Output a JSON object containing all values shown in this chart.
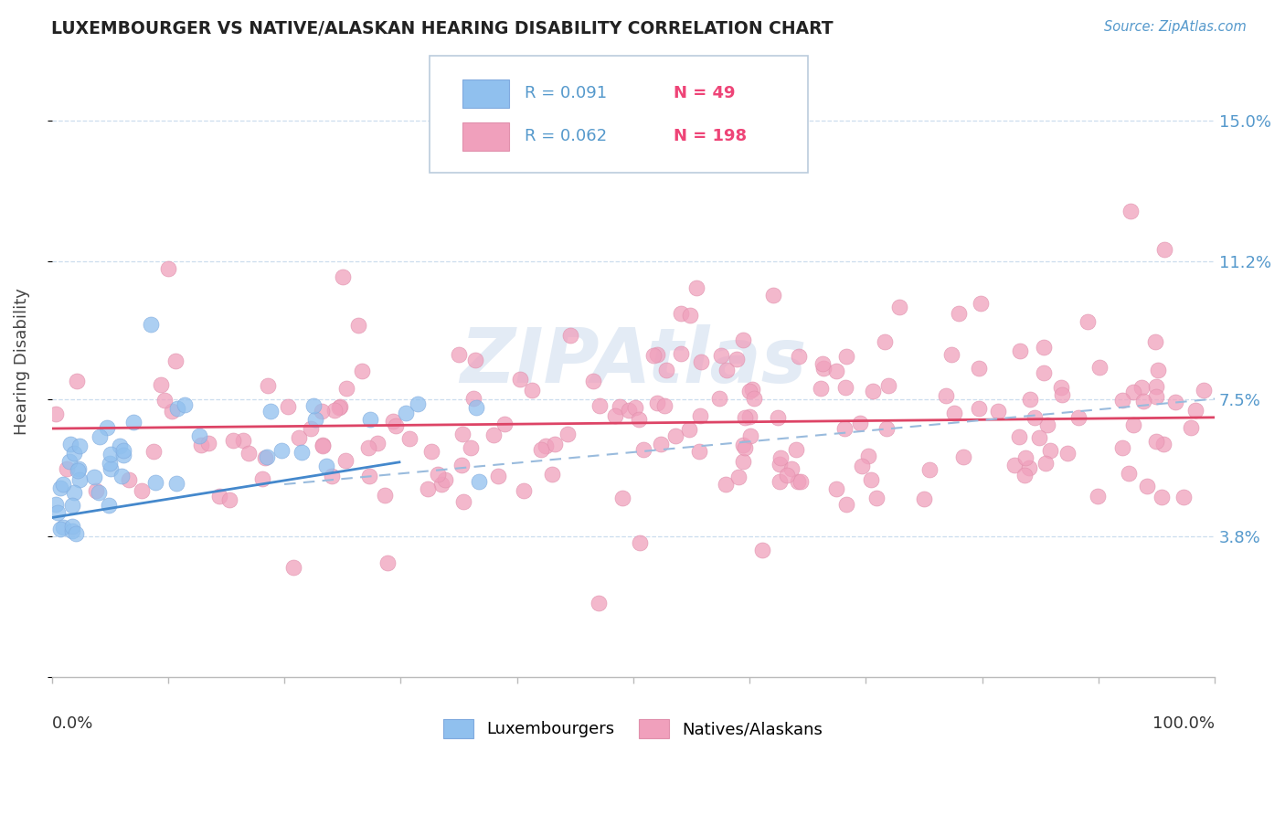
{
  "title": "LUXEMBOURGER VS NATIVE/ALASKAN HEARING DISABILITY CORRELATION CHART",
  "source_text": "Source: ZipAtlas.com",
  "ylabel": "Hearing Disability",
  "color_lux": "#90C0EE",
  "color_lux_edge": "#80AADE",
  "color_native": "#F0A0BC",
  "color_native_edge": "#E090AC",
  "color_trendline_lux": "#4488CC",
  "color_trendline_native": "#DD4466",
  "color_dashed": "#99BBDD",
  "background_color": "#FFFFFF",
  "grid_color": "#CCDDEE",
  "watermark": "ZIPAtlas",
  "ytick_vals": [
    0,
    3.8,
    7.5,
    11.2,
    15.0
  ],
  "ytick_labels": [
    "",
    "3.8%",
    "7.5%",
    "11.2%",
    "15.0%"
  ],
  "xlim": [
    0,
    100
  ],
  "ylim": [
    0,
    17.0
  ],
  "legend_r1": "R = 0.091",
  "legend_n1": "N = 49",
  "legend_r2": "R = 0.062",
  "legend_n2": "N = 198",
  "lux_trend": [
    0,
    4.3,
    30,
    5.8
  ],
  "nat_trend": [
    0,
    6.7,
    100,
    7.0
  ],
  "dash_trend": [
    20,
    5.2,
    100,
    7.5
  ]
}
